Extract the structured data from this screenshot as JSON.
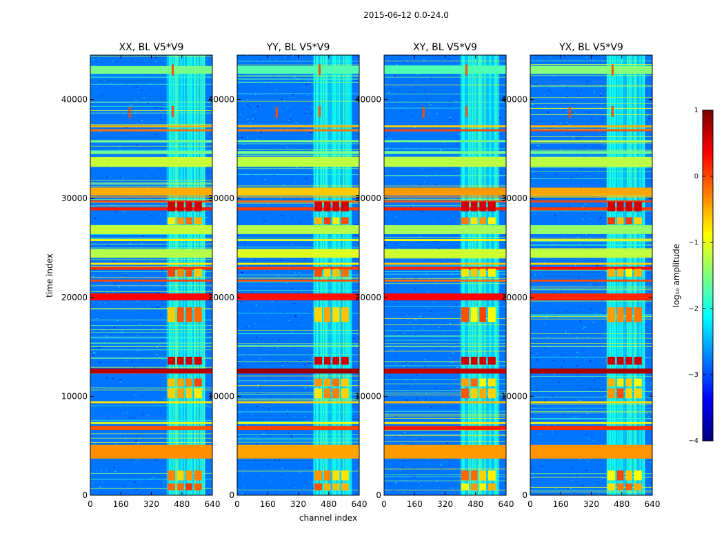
{
  "figure": {
    "suptitle": "2015-06-12 0.0-24.0",
    "xlabel": "channel index",
    "ylabel": "time index"
  },
  "colorbar": {
    "label": "log₁₀ amplitude",
    "range": [
      -4,
      1
    ],
    "ticks": [
      "1",
      "0",
      "−1",
      "−2",
      "−3",
      "−4"
    ],
    "colormap": "jet"
  },
  "chart_data": [
    {
      "type": "heatmap",
      "title": "XX, BL V5*V9",
      "xlabel": "channel index",
      "ylabel": "time index",
      "xlim": [
        0,
        640
      ],
      "ylim": [
        0,
        44500
      ],
      "xticks": [
        "0",
        "160",
        "320",
        "480",
        "640"
      ],
      "yticks": [
        "0",
        "10000",
        "20000",
        "30000",
        "40000"
      ],
      "colorbar_range": [
        -4,
        1
      ],
      "seed": 11
    },
    {
      "type": "heatmap",
      "title": "YY, BL V5*V9",
      "xlabel": "channel index",
      "ylabel": "time index",
      "xlim": [
        0,
        640
      ],
      "ylim": [
        0,
        44500
      ],
      "xticks": [
        "0",
        "160",
        "320",
        "480",
        "640"
      ],
      "yticks": [
        "0",
        "10000",
        "20000",
        "30000",
        "40000"
      ],
      "colorbar_range": [
        -4,
        1
      ],
      "seed": 23
    },
    {
      "type": "heatmap",
      "title": "XY, BL V5*V9",
      "xlabel": "channel index",
      "ylabel": "time index",
      "xlim": [
        0,
        640
      ],
      "ylim": [
        0,
        44500
      ],
      "xticks": [
        "0",
        "160",
        "320",
        "480",
        "640"
      ],
      "yticks": [
        "0",
        "10000",
        "20000",
        "30000",
        "40000"
      ],
      "colorbar_range": [
        -4,
        1
      ],
      "seed": 37
    },
    {
      "type": "heatmap",
      "title": "YX, BL V5*V9",
      "xlabel": "channel index",
      "ylabel": "time index",
      "xlim": [
        0,
        640
      ],
      "ylim": [
        0,
        44500
      ],
      "xticks": [
        "0",
        "160",
        "320",
        "480",
        "640"
      ],
      "yticks": [
        "0",
        "10000",
        "20000",
        "30000",
        "40000"
      ],
      "colorbar_range": [
        -4,
        1
      ],
      "seed": 51
    }
  ]
}
